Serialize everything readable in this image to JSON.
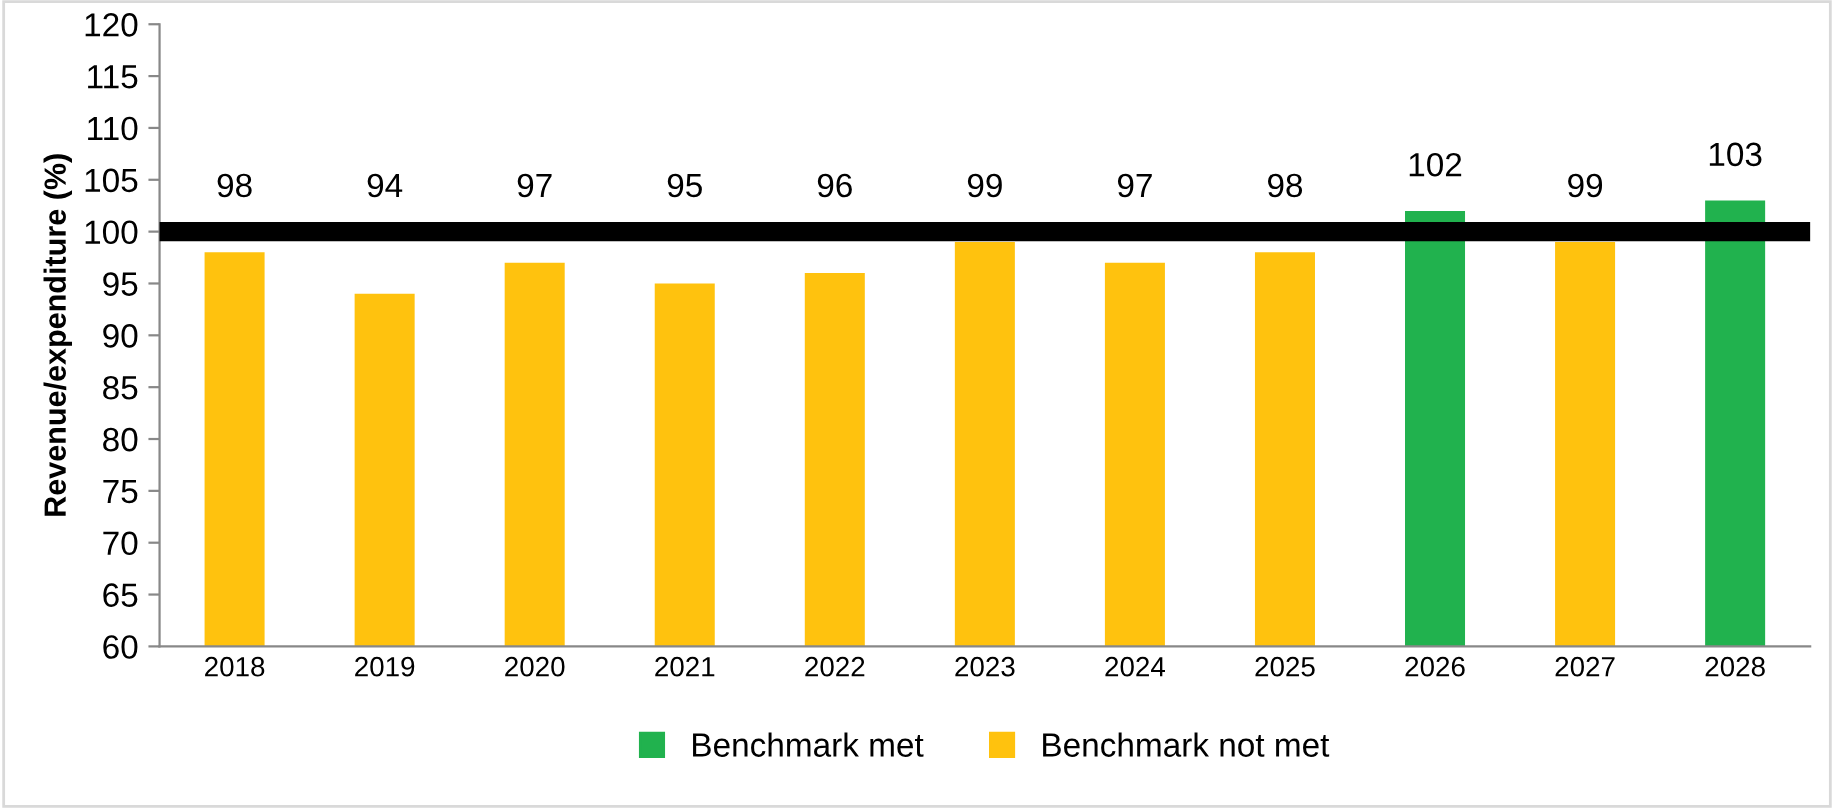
{
  "chart_data": {
    "type": "bar",
    "ylabel": "Revenue/expenditure (%)",
    "categories": [
      "2018",
      "2019",
      "2020",
      "2021",
      "2022",
      "2023",
      "2024",
      "2025",
      "2026",
      "2027",
      "2028"
    ],
    "series": [
      {
        "name": "Benchmark met",
        "color": "#21b24e",
        "values": [
          null,
          null,
          null,
          null,
          null,
          null,
          null,
          null,
          102,
          null,
          103
        ]
      },
      {
        "name": "Benchmark not met",
        "color": "#ffc20e",
        "values": [
          98,
          94,
          97,
          95,
          96,
          99,
          97,
          98,
          null,
          99,
          null
        ]
      }
    ],
    "ylim": [
      60,
      120
    ],
    "yticks": [
      60,
      65,
      70,
      75,
      80,
      85,
      90,
      95,
      100,
      105,
      110,
      115,
      120
    ],
    "ref_lines": [
      {
        "axis": "y",
        "value": 100,
        "color": "#000000"
      }
    ],
    "data_labels": true,
    "grid": false,
    "legend": "bottom"
  }
}
